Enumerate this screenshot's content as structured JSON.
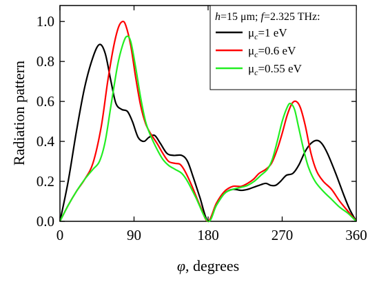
{
  "chart_data": {
    "type": "line",
    "xlabel_symbol": "φ",
    "xlabel_rest": ", degrees",
    "ylabel": "Radiation pattern",
    "xlim": [
      0,
      360
    ],
    "ylim": [
      0,
      1.08
    ],
    "xticks": [
      0,
      90,
      180,
      270,
      360
    ],
    "yticks": [
      0.0,
      0.2,
      0.4,
      0.6,
      0.8,
      1.0
    ],
    "ytick_labels": [
      "0.0",
      "0.2",
      "0.4",
      "0.6",
      "0.8",
      "1.0"
    ],
    "grid": false,
    "legend_position": "top-right",
    "legend_title": {
      "h_symbol": "h",
      "h_value": "=15 μm; ",
      "f_symbol": "f",
      "f_value": "=2.325 THz:"
    },
    "series": [
      {
        "name": "μc=1 eV",
        "label_base": "μ",
        "label_sub": "c",
        "label_rest": "=1 eV",
        "color": "#000000",
        "points": [
          [
            0,
            0
          ],
          [
            10,
            0.2
          ],
          [
            20,
            0.45
          ],
          [
            30,
            0.67
          ],
          [
            40,
            0.82
          ],
          [
            48,
            0.885
          ],
          [
            55,
            0.84
          ],
          [
            62,
            0.7
          ],
          [
            68,
            0.59
          ],
          [
            75,
            0.56
          ],
          [
            82,
            0.55
          ],
          [
            88,
            0.5
          ],
          [
            95,
            0.42
          ],
          [
            102,
            0.4
          ],
          [
            108,
            0.42
          ],
          [
            115,
            0.43
          ],
          [
            122,
            0.39
          ],
          [
            130,
            0.34
          ],
          [
            138,
            0.33
          ],
          [
            148,
            0.33
          ],
          [
            155,
            0.3
          ],
          [
            162,
            0.22
          ],
          [
            170,
            0.12
          ],
          [
            180,
            0
          ],
          [
            190,
            0.08
          ],
          [
            200,
            0.14
          ],
          [
            210,
            0.16
          ],
          [
            220,
            0.155
          ],
          [
            228,
            0.16
          ],
          [
            235,
            0.17
          ],
          [
            242,
            0.18
          ],
          [
            250,
            0.19
          ],
          [
            256,
            0.18
          ],
          [
            262,
            0.18
          ],
          [
            268,
            0.2
          ],
          [
            275,
            0.23
          ],
          [
            283,
            0.24
          ],
          [
            290,
            0.28
          ],
          [
            298,
            0.35
          ],
          [
            305,
            0.39
          ],
          [
            312,
            0.405
          ],
          [
            318,
            0.39
          ],
          [
            325,
            0.34
          ],
          [
            335,
            0.24
          ],
          [
            345,
            0.13
          ],
          [
            352,
            0.06
          ],
          [
            360,
            0
          ]
        ]
      },
      {
        "name": "μc=0.6 eV",
        "label_base": "μ",
        "label_sub": "c",
        "label_rest": "=0.6 eV",
        "color": "#ff0000",
        "points": [
          [
            0,
            0
          ],
          [
            10,
            0.08
          ],
          [
            20,
            0.15
          ],
          [
            30,
            0.21
          ],
          [
            40,
            0.29
          ],
          [
            50,
            0.47
          ],
          [
            58,
            0.7
          ],
          [
            65,
            0.87
          ],
          [
            71,
            0.97
          ],
          [
            76,
            1.0
          ],
          [
            80,
            0.98
          ],
          [
            86,
            0.88
          ],
          [
            92,
            0.72
          ],
          [
            98,
            0.58
          ],
          [
            104,
            0.49
          ],
          [
            110,
            0.44
          ],
          [
            118,
            0.39
          ],
          [
            125,
            0.34
          ],
          [
            132,
            0.3
          ],
          [
            140,
            0.29
          ],
          [
            146,
            0.285
          ],
          [
            152,
            0.25
          ],
          [
            160,
            0.18
          ],
          [
            170,
            0.08
          ],
          [
            180,
            0
          ],
          [
            190,
            0.09
          ],
          [
            200,
            0.15
          ],
          [
            210,
            0.175
          ],
          [
            220,
            0.175
          ],
          [
            228,
            0.19
          ],
          [
            235,
            0.21
          ],
          [
            242,
            0.24
          ],
          [
            250,
            0.26
          ],
          [
            257,
            0.29
          ],
          [
            264,
            0.36
          ],
          [
            270,
            0.44
          ],
          [
            276,
            0.53
          ],
          [
            282,
            0.59
          ],
          [
            287,
            0.6
          ],
          [
            292,
            0.57
          ],
          [
            298,
            0.48
          ],
          [
            305,
            0.34
          ],
          [
            312,
            0.25
          ],
          [
            320,
            0.2
          ],
          [
            330,
            0.16
          ],
          [
            340,
            0.1
          ],
          [
            350,
            0.05
          ],
          [
            360,
            0
          ]
        ]
      },
      {
        "name": "μc=0.55 eV",
        "label_base": "μ",
        "label_sub": "c",
        "label_rest": "=0.55 eV",
        "color": "#22ee22",
        "points": [
          [
            0,
            0
          ],
          [
            10,
            0.08
          ],
          [
            20,
            0.15
          ],
          [
            30,
            0.21
          ],
          [
            40,
            0.26
          ],
          [
            48,
            0.3
          ],
          [
            55,
            0.4
          ],
          [
            62,
            0.58
          ],
          [
            70,
            0.78
          ],
          [
            76,
            0.88
          ],
          [
            81,
            0.925
          ],
          [
            86,
            0.9
          ],
          [
            92,
            0.77
          ],
          [
            98,
            0.62
          ],
          [
            104,
            0.5
          ],
          [
            110,
            0.43
          ],
          [
            118,
            0.36
          ],
          [
            125,
            0.31
          ],
          [
            132,
            0.28
          ],
          [
            140,
            0.26
          ],
          [
            148,
            0.24
          ],
          [
            155,
            0.2
          ],
          [
            165,
            0.12
          ],
          [
            180,
            0
          ],
          [
            190,
            0.08
          ],
          [
            200,
            0.14
          ],
          [
            210,
            0.16
          ],
          [
            220,
            0.17
          ],
          [
            228,
            0.18
          ],
          [
            236,
            0.2
          ],
          [
            244,
            0.23
          ],
          [
            252,
            0.26
          ],
          [
            258,
            0.31
          ],
          [
            264,
            0.4
          ],
          [
            270,
            0.5
          ],
          [
            276,
            0.57
          ],
          [
            280,
            0.59
          ],
          [
            285,
            0.56
          ],
          [
            290,
            0.47
          ],
          [
            296,
            0.36
          ],
          [
            302,
            0.27
          ],
          [
            310,
            0.2
          ],
          [
            320,
            0.15
          ],
          [
            330,
            0.11
          ],
          [
            340,
            0.07
          ],
          [
            350,
            0.04
          ],
          [
            360,
            0
          ]
        ]
      }
    ]
  }
}
